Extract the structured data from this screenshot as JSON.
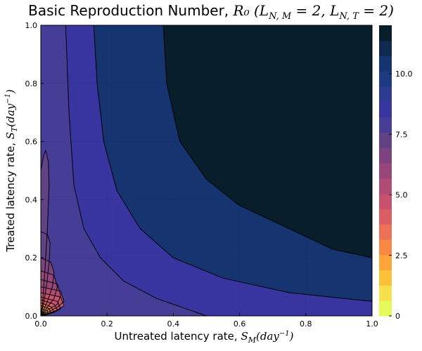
{
  "chart_data": {
    "type": "contour",
    "title": {
      "prefix": "Basic Reproduction Number, ",
      "math": "R₀ (L",
      "sub1": "N, M",
      "mid": " = 2, L",
      "sub2": "N, T",
      "suffix": " = 2)"
    },
    "xlabel": {
      "text": "Untreated latency rate, ",
      "math": "S",
      "sub": "M",
      "unit": "(day",
      "sup": "−1",
      "close": ")"
    },
    "ylabel": {
      "text": "Treated latency rate, ",
      "math": "S",
      "sub": "T",
      "unit": "(day",
      "sup": "−1",
      "close": ")"
    },
    "xlim": [
      0,
      1
    ],
    "ylim": [
      0,
      1
    ],
    "x_ticks": [
      0.0,
      0.2,
      0.4,
      0.6,
      0.8,
      1.0
    ],
    "x_tick_labels": [
      "0.0",
      "0.2",
      "0.4",
      "0.6",
      "0.8",
      "1.0"
    ],
    "y_ticks": [
      0.0,
      0.2,
      0.4,
      0.6,
      0.8,
      1.0
    ],
    "y_tick_labels": [
      "0.0",
      "0.2",
      "0.4",
      "0.6",
      "0.8",
      "1.0"
    ],
    "grid": true,
    "colorbar": {
      "range": [
        0,
        12
      ],
      "ticks": [
        0,
        2.5,
        5.0,
        7.5,
        10.0
      ],
      "tick_labels": [
        "0",
        "2.5",
        "5.0",
        "7.5",
        "10.0"
      ],
      "colors": [
        "#e8fa5b",
        "#f7e04b",
        "#fcc139",
        "#fda53b",
        "#f78944",
        "#ec7156",
        "#dc5d64",
        "#c7516f",
        "#b04b76",
        "#964679",
        "#7d437f",
        "#604285",
        "#463d97",
        "#3935a0",
        "#2e3b93",
        "#1e3a82",
        "#153470",
        "#10294f",
        "#081f2b"
      ]
    },
    "contour_levels": [
      0.6,
      0.8,
      1.0,
      1.2,
      1.4,
      1.6,
      1.8,
      2.0,
      2.2,
      2.4,
      2.6,
      2.8,
      3.0,
      3.5,
      4.0,
      5.5,
      7.0,
      9.0,
      11.0
    ],
    "contours": [
      [
        [
          0.0,
          0.5
        ],
        [
          0.008,
          0.55
        ],
        [
          0.015,
          0.57
        ],
        [
          0.023,
          0.53
        ],
        [
          0.025,
          0.45
        ],
        [
          0.02,
          0.3
        ],
        [
          0.012,
          0.15
        ],
        [
          0.006,
          0.05
        ],
        [
          0.0,
          0.0
        ]
      ],
      [
        [
          0.0,
          0.29
        ],
        [
          0.02,
          0.28
        ],
        [
          0.028,
          0.25
        ],
        [
          0.025,
          0.18
        ],
        [
          0.018,
          0.11
        ],
        [
          0.01,
          0.05
        ],
        [
          0.0,
          0.0
        ]
      ],
      [
        [
          0.0,
          0.2
        ],
        [
          0.03,
          0.185
        ],
        [
          0.04,
          0.15
        ],
        [
          0.035,
          0.1
        ],
        [
          0.02,
          0.05
        ],
        [
          0.0,
          0.0
        ]
      ],
      [
        [
          0.0,
          0.155
        ],
        [
          0.04,
          0.14
        ],
        [
          0.05,
          0.1
        ],
        [
          0.04,
          0.06
        ],
        [
          0.02,
          0.03
        ],
        [
          0.0,
          0.0
        ]
      ],
      [
        [
          0.0,
          0.125
        ],
        [
          0.05,
          0.11
        ],
        [
          0.06,
          0.07
        ],
        [
          0.05,
          0.04
        ],
        [
          0.02,
          0.02
        ],
        [
          0.0,
          0.0
        ]
      ],
      [
        [
          0.0,
          0.1
        ],
        [
          0.06,
          0.085
        ],
        [
          0.07,
          0.05
        ],
        [
          0.05,
          0.03
        ],
        [
          0.02,
          0.012
        ],
        [
          0.0,
          0.0
        ]
      ],
      [
        [
          0.0,
          0.08
        ],
        [
          0.06,
          0.065
        ],
        [
          0.07,
          0.035
        ],
        [
          0.05,
          0.02
        ],
        [
          0.0,
          0.0
        ]
      ],
      [
        [
          0.0,
          0.065
        ],
        [
          0.05,
          0.05
        ],
        [
          0.06,
          0.025
        ],
        [
          0.04,
          0.012
        ],
        [
          0.0,
          0.0
        ]
      ],
      [
        [
          0.0,
          0.055
        ],
        [
          0.04,
          0.04
        ],
        [
          0.05,
          0.02
        ],
        [
          0.03,
          0.008
        ],
        [
          0.0,
          0.0
        ]
      ],
      [
        [
          0.0,
          0.045
        ],
        [
          0.03,
          0.032
        ],
        [
          0.04,
          0.015
        ],
        [
          0.02,
          0.005
        ],
        [
          0.0,
          0.0
        ]
      ],
      [
        [
          0.0,
          0.035
        ],
        [
          0.025,
          0.025
        ],
        [
          0.03,
          0.01
        ],
        [
          0.015,
          0.004
        ],
        [
          0.0,
          0.0
        ]
      ],
      [
        [
          0.0,
          0.025
        ],
        [
          0.02,
          0.018
        ],
        [
          0.022,
          0.007
        ],
        [
          0.01,
          0.002
        ],
        [
          0.0,
          0.0
        ]
      ],
      [
        [
          0.0,
          0.016
        ],
        [
          0.014,
          0.011
        ],
        [
          0.015,
          0.004
        ],
        [
          0.005,
          0.001
        ],
        [
          0.0,
          0.0
        ]
      ],
      [
        [
          0.0,
          0.01
        ],
        [
          0.009,
          0.007
        ],
        [
          0.01,
          0.002
        ],
        [
          0.0,
          0.0
        ]
      ],
      [
        [
          0.0,
          0.005
        ],
        [
          0.005,
          0.003
        ],
        [
          0.005,
          0.0
        ],
        [
          0.0,
          0.0
        ]
      ],
      [
        [
          0.075,
          1.0
        ],
        [
          0.085,
          0.7
        ],
        [
          0.1,
          0.45
        ],
        [
          0.13,
          0.3
        ],
        [
          0.18,
          0.2
        ],
        [
          0.25,
          0.12
        ],
        [
          0.35,
          0.06
        ],
        [
          0.5,
          0.0
        ]
      ],
      [
        [
          0.16,
          1.0
        ],
        [
          0.17,
          0.8
        ],
        [
          0.19,
          0.6
        ],
        [
          0.23,
          0.43
        ],
        [
          0.3,
          0.3
        ],
        [
          0.4,
          0.2
        ],
        [
          0.55,
          0.13
        ],
        [
          0.75,
          0.08
        ],
        [
          1.0,
          0.05
        ]
      ],
      [
        [
          0.37,
          1.0
        ],
        [
          0.38,
          0.8
        ],
        [
          0.42,
          0.6
        ],
        [
          0.5,
          0.47
        ],
        [
          0.6,
          0.38
        ],
        [
          0.75,
          0.3
        ],
        [
          0.88,
          0.23
        ],
        [
          1.0,
          0.2
        ]
      ]
    ],
    "regions": [
      {
        "value": 11.5,
        "polygon": [
          [
            0.37,
            1.0
          ],
          [
            1.0,
            1.0
          ],
          [
            1.0,
            0.2
          ],
          [
            0.88,
            0.23
          ],
          [
            0.75,
            0.3
          ],
          [
            0.6,
            0.38
          ],
          [
            0.5,
            0.47
          ],
          [
            0.42,
            0.6
          ],
          [
            0.38,
            0.8
          ]
        ]
      },
      {
        "value": 10.2,
        "polygon": [
          [
            0.16,
            1.0
          ],
          [
            0.37,
            1.0
          ],
          [
            0.38,
            0.8
          ],
          [
            0.42,
            0.6
          ],
          [
            0.5,
            0.47
          ],
          [
            0.6,
            0.38
          ],
          [
            0.75,
            0.3
          ],
          [
            0.88,
            0.23
          ],
          [
            1.0,
            0.2
          ],
          [
            1.0,
            0.05
          ],
          [
            0.75,
            0.08
          ],
          [
            0.55,
            0.13
          ],
          [
            0.4,
            0.2
          ],
          [
            0.3,
            0.3
          ],
          [
            0.23,
            0.43
          ],
          [
            0.19,
            0.6
          ],
          [
            0.17,
            0.8
          ]
        ]
      },
      {
        "value": 8.8,
        "polygon": [
          [
            0.075,
            1.0
          ],
          [
            0.16,
            1.0
          ],
          [
            0.17,
            0.8
          ],
          [
            0.19,
            0.6
          ],
          [
            0.23,
            0.43
          ],
          [
            0.3,
            0.3
          ],
          [
            0.4,
            0.2
          ],
          [
            0.55,
            0.13
          ],
          [
            0.75,
            0.08
          ],
          [
            1.0,
            0.05
          ],
          [
            1.0,
            0.0
          ],
          [
            0.5,
            0.0
          ],
          [
            0.35,
            0.06
          ],
          [
            0.25,
            0.12
          ],
          [
            0.18,
            0.2
          ],
          [
            0.13,
            0.3
          ],
          [
            0.1,
            0.45
          ],
          [
            0.085,
            0.7
          ]
        ]
      },
      {
        "value": 8.2,
        "polygon": [
          [
            0.0,
            1.0
          ],
          [
            0.075,
            1.0
          ],
          [
            0.085,
            0.7
          ],
          [
            0.1,
            0.45
          ],
          [
            0.13,
            0.3
          ],
          [
            0.18,
            0.2
          ],
          [
            0.25,
            0.12
          ],
          [
            0.35,
            0.06
          ],
          [
            0.5,
            0.0
          ],
          [
            0.0,
            0.0
          ]
        ]
      },
      {
        "value": 7.4,
        "polygon": [
          [
            0.0,
            0.5
          ],
          [
            0.008,
            0.55
          ],
          [
            0.015,
            0.57
          ],
          [
            0.023,
            0.53
          ],
          [
            0.025,
            0.45
          ],
          [
            0.02,
            0.3
          ],
          [
            0.012,
            0.15
          ],
          [
            0.006,
            0.05
          ],
          [
            0.0,
            0.0
          ]
        ]
      },
      {
        "value": 7.0,
        "polygon": [
          [
            0.0,
            0.29
          ],
          [
            0.02,
            0.28
          ],
          [
            0.028,
            0.25
          ],
          [
            0.025,
            0.18
          ],
          [
            0.018,
            0.11
          ],
          [
            0.01,
            0.05
          ],
          [
            0.0,
            0.0
          ]
        ]
      },
      {
        "value": 6.6,
        "polygon": [
          [
            0.0,
            0.2
          ],
          [
            0.03,
            0.185
          ],
          [
            0.04,
            0.15
          ],
          [
            0.035,
            0.1
          ],
          [
            0.02,
            0.05
          ],
          [
            0.0,
            0.0
          ]
        ]
      },
      {
        "value": 6.2,
        "polygon": [
          [
            0.0,
            0.155
          ],
          [
            0.04,
            0.14
          ],
          [
            0.05,
            0.1
          ],
          [
            0.04,
            0.06
          ],
          [
            0.02,
            0.03
          ],
          [
            0.0,
            0.0
          ]
        ]
      },
      {
        "value": 5.8,
        "polygon": [
          [
            0.0,
            0.125
          ],
          [
            0.05,
            0.11
          ],
          [
            0.06,
            0.07
          ],
          [
            0.05,
            0.04
          ],
          [
            0.02,
            0.02
          ],
          [
            0.0,
            0.0
          ]
        ]
      },
      {
        "value": 5.4,
        "polygon": [
          [
            0.0,
            0.1
          ],
          [
            0.06,
            0.085
          ],
          [
            0.07,
            0.05
          ],
          [
            0.05,
            0.03
          ],
          [
            0.02,
            0.012
          ],
          [
            0.0,
            0.0
          ]
        ]
      },
      {
        "value": 5.0,
        "polygon": [
          [
            0.0,
            0.08
          ],
          [
            0.06,
            0.065
          ],
          [
            0.07,
            0.035
          ],
          [
            0.05,
            0.02
          ],
          [
            0.0,
            0.0
          ]
        ]
      },
      {
        "value": 4.5,
        "polygon": [
          [
            0.0,
            0.065
          ],
          [
            0.05,
            0.05
          ],
          [
            0.06,
            0.025
          ],
          [
            0.04,
            0.012
          ],
          [
            0.0,
            0.0
          ]
        ]
      },
      {
        "value": 4.0,
        "polygon": [
          [
            0.0,
            0.055
          ],
          [
            0.04,
            0.04
          ],
          [
            0.05,
            0.02
          ],
          [
            0.03,
            0.008
          ],
          [
            0.0,
            0.0
          ]
        ]
      },
      {
        "value": 3.4,
        "polygon": [
          [
            0.0,
            0.045
          ],
          [
            0.03,
            0.032
          ],
          [
            0.04,
            0.015
          ],
          [
            0.02,
            0.005
          ],
          [
            0.0,
            0.0
          ]
        ]
      },
      {
        "value": 2.8,
        "polygon": [
          [
            0.0,
            0.035
          ],
          [
            0.025,
            0.025
          ],
          [
            0.03,
            0.01
          ],
          [
            0.015,
            0.004
          ],
          [
            0.0,
            0.0
          ]
        ]
      },
      {
        "value": 2.2,
        "polygon": [
          [
            0.0,
            0.025
          ],
          [
            0.02,
            0.018
          ],
          [
            0.022,
            0.007
          ],
          [
            0.01,
            0.002
          ],
          [
            0.0,
            0.0
          ]
        ]
      },
      {
        "value": 1.6,
        "polygon": [
          [
            0.0,
            0.016
          ],
          [
            0.014,
            0.011
          ],
          [
            0.015,
            0.004
          ],
          [
            0.005,
            0.001
          ],
          [
            0.0,
            0.0
          ]
        ]
      },
      {
        "value": 1.0,
        "polygon": [
          [
            0.0,
            0.01
          ],
          [
            0.009,
            0.007
          ],
          [
            0.01,
            0.002
          ],
          [
            0.0,
            0.0
          ]
        ]
      },
      {
        "value": 0.4,
        "polygon": [
          [
            0.0,
            0.005
          ],
          [
            0.005,
            0.003
          ],
          [
            0.005,
            0.0
          ],
          [
            0.0,
            0.0
          ]
        ]
      }
    ]
  }
}
